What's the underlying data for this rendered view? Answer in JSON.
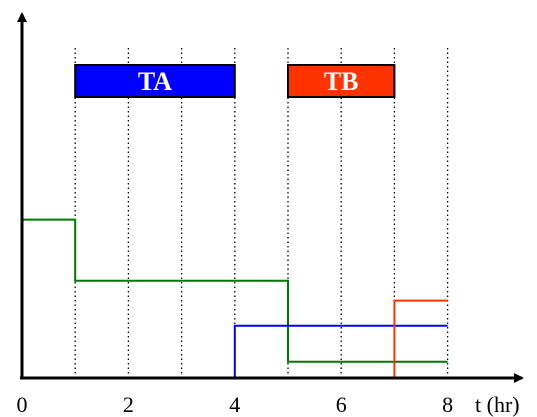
{
  "chart_data": {
    "type": "line",
    "title": "",
    "xlabel": "t (hr)",
    "ylabel": "",
    "xlim": [
      0,
      8.5
    ],
    "ylim": [
      0,
      10
    ],
    "x_ticks": [
      0,
      1,
      2,
      3,
      4,
      5,
      6,
      7,
      8
    ],
    "x_tick_labels": [
      "0",
      "",
      "2",
      "",
      "4",
      "",
      "6",
      "",
      "8"
    ],
    "grid": "vertical dotted lines at integer hours 1–8",
    "task_bars": [
      {
        "label": "TA",
        "start": 1,
        "end": 4,
        "color": "#0000ff"
      },
      {
        "label": "TB",
        "start": 5,
        "end": 7,
        "color": "#ff3300"
      }
    ],
    "series": [
      {
        "color": "#007700",
        "points": [
          [
            0,
            4.4
          ],
          [
            1,
            4.4
          ],
          [
            1,
            2.7
          ],
          [
            5,
            2.7
          ],
          [
            5,
            0.45
          ],
          [
            8,
            0.45
          ]
        ]
      },
      {
        "color": "#0000ff",
        "points": [
          [
            4,
            0
          ],
          [
            4,
            1.45
          ],
          [
            8,
            1.45
          ]
        ]
      },
      {
        "color": "#ff3300",
        "points": [
          [
            7,
            0
          ],
          [
            7,
            2.15
          ],
          [
            8,
            2.15
          ]
        ]
      }
    ]
  }
}
